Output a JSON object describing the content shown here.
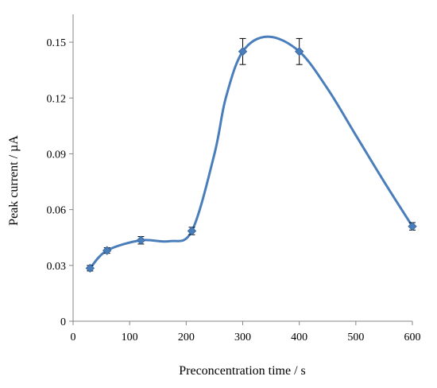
{
  "chart_data": {
    "type": "scatter",
    "title": "",
    "xlabel": "Preconcentration time / s",
    "ylabel": "Peak current / µA",
    "xlim": [
      0,
      600
    ],
    "ylim": [
      0,
      0.165
    ],
    "xticks": [
      0,
      100,
      200,
      300,
      400,
      500,
      600
    ],
    "xtick_labels": [
      "0",
      "100",
      "200",
      "300",
      "400",
      "500",
      "600"
    ],
    "yticks": [
      0,
      0.03,
      0.06,
      0.09,
      0.12,
      0.15
    ],
    "ytick_labels": [
      "0",
      "0.03",
      "0.06",
      "0.09",
      "0.12",
      "0.15"
    ],
    "grid": false,
    "legend": "none",
    "smooth_line": true,
    "series": [
      {
        "x": [
          30,
          60,
          120,
          210,
          300,
          400,
          600
        ],
        "y": [
          0.0285,
          0.038,
          0.0435,
          0.0485,
          0.145,
          0.145,
          0.051
        ],
        "error": [
          0.0015,
          0.0015,
          0.002,
          0.002,
          0.007,
          0.007,
          0.002
        ],
        "color": "#4a7ebb",
        "marker": "diamond"
      }
    ],
    "curve_path": [
      [
        30,
        0.0285
      ],
      [
        60,
        0.038
      ],
      [
        120,
        0.0435
      ],
      [
        170,
        0.043
      ],
      [
        210,
        0.0485
      ],
      [
        250,
        0.09
      ],
      [
        270,
        0.12
      ],
      [
        300,
        0.145
      ],
      [
        345,
        0.153
      ],
      [
        400,
        0.145
      ],
      [
        450,
        0.125
      ],
      [
        500,
        0.1
      ],
      [
        550,
        0.075
      ],
      [
        600,
        0.051
      ]
    ],
    "error_bar_color": "#000000",
    "axis_color": "#868686"
  }
}
